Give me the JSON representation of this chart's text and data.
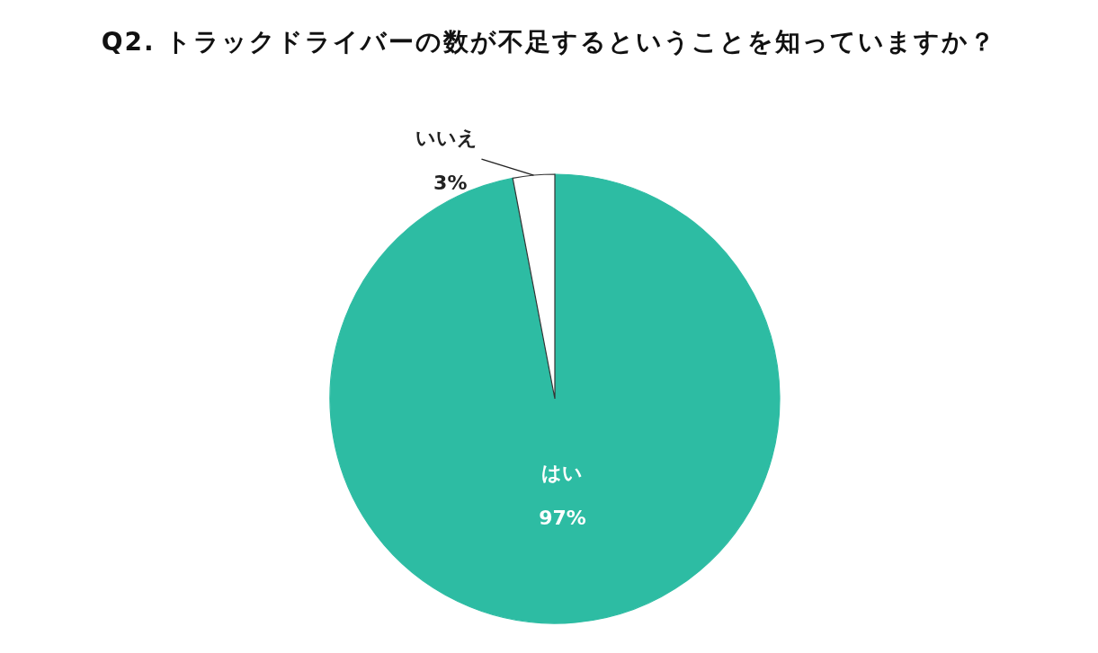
{
  "chart_data": {
    "type": "pie",
    "title": "Q2. トラックドライバーの数が不足するということを知っていますか？",
    "categories": [
      "はい",
      "いいえ"
    ],
    "values": [
      97,
      3
    ],
    "value_labels": [
      "97%",
      "3%"
    ],
    "colors": [
      "#2dbca3",
      "#ffffff"
    ],
    "legend": false
  }
}
